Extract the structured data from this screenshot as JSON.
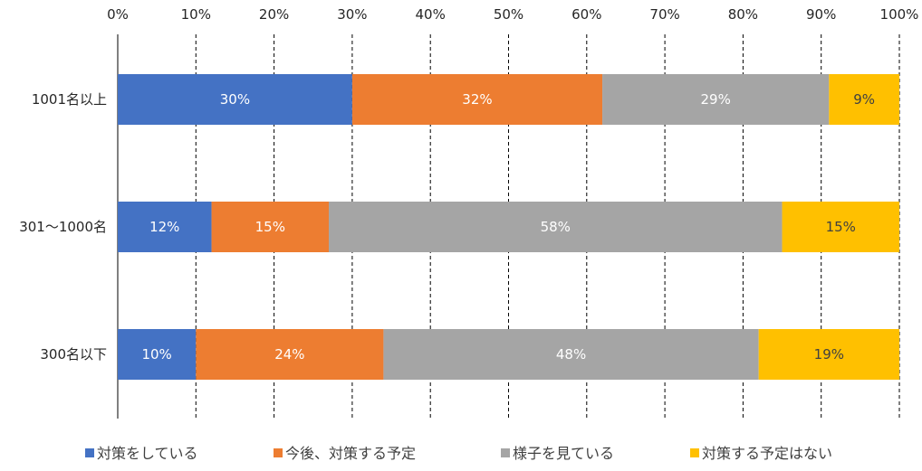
{
  "chart_data": {
    "type": "bar",
    "orientation": "horizontal",
    "stacked": true,
    "categories": [
      "1001名以上",
      "301～1000名",
      "300名以下"
    ],
    "series": [
      {
        "name": "対策をしている",
        "color": "#4472C4",
        "label_color": "#ffffff",
        "values": [
          30,
          12,
          10
        ],
        "labels": [
          "30%",
          "12%",
          "10%"
        ]
      },
      {
        "name": "今後、対策する予定",
        "color": "#ED7D31",
        "label_color": "#ffffff",
        "values": [
          32,
          15,
          24
        ],
        "labels": [
          "32%",
          "15%",
          "24%"
        ]
      },
      {
        "name": "様子を見ている",
        "color": "#A5A5A5",
        "label_color": "#ffffff",
        "values": [
          29,
          58,
          48
        ],
        "labels": [
          "29%",
          "58%",
          "48%"
        ]
      },
      {
        "name": "対策する予定はない",
        "color": "#FFC000",
        "label_color": "#404040",
        "values": [
          9,
          15,
          19
        ],
        "labels": [
          "9%",
          "15%",
          "19%"
        ]
      }
    ],
    "xlim": [
      0,
      100
    ],
    "xticks": [
      "0%",
      "10%",
      "20%",
      "30%",
      "40%",
      "50%",
      "60%",
      "70%",
      "80%",
      "90%",
      "100%"
    ],
    "grid": "vertical dashed",
    "legend_position": "bottom"
  }
}
